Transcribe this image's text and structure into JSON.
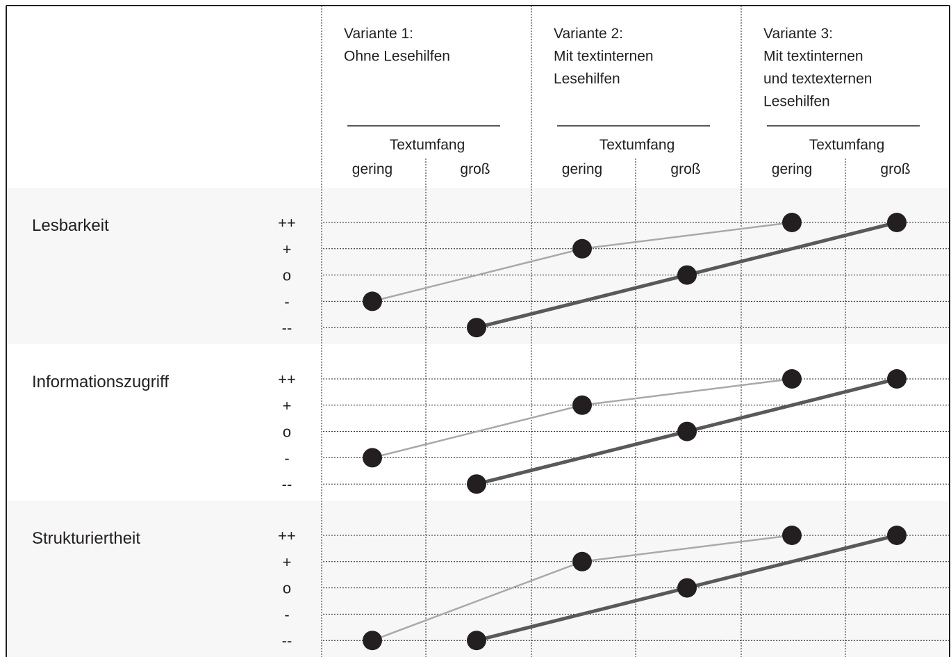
{
  "chart_data": {
    "type": "line",
    "variants": [
      {
        "title_lines": [
          "Variante 1:",
          "Ohne Lesehilfen"
        ],
        "subheader": "Textumfang",
        "categories": [
          "gering",
          "groß"
        ]
      },
      {
        "title_lines": [
          "Variante 2:",
          "Mit textinternen",
          "Lesehilfen"
        ],
        "subheader": "Textumfang",
        "categories": [
          "gering",
          "groß"
        ]
      },
      {
        "title_lines": [
          "Variante 3:",
          "Mit textinternen",
          "und textexternen",
          "Lesehilfen"
        ],
        "subheader": "Textumfang",
        "categories": [
          "gering",
          "groß"
        ]
      }
    ],
    "scale": [
      "++",
      "+",
      "o",
      "-",
      "--"
    ],
    "scale_values": [
      2,
      1,
      0,
      -1,
      -2
    ],
    "criteria": [
      {
        "name": "Lesbarkeit",
        "series": [
          {
            "style": "gering",
            "values": [
              -1,
              1,
              2
            ]
          },
          {
            "style": "groß",
            "values": [
              -2,
              0,
              2
            ]
          }
        ]
      },
      {
        "name": "Informationszugriff",
        "series": [
          {
            "style": "gering",
            "values": [
              -1,
              1,
              2
            ]
          },
          {
            "style": "groß",
            "values": [
              -2,
              0,
              2
            ]
          }
        ]
      },
      {
        "name": "Strukturiertheit",
        "series": [
          {
            "style": "gering",
            "values": [
              -2,
              1,
              2
            ]
          },
          {
            "style": "groß",
            "values": [
              -2,
              0,
              2
            ]
          }
        ]
      }
    ],
    "colors": {
      "light_line": "#a7a9ac",
      "dark_line": "#58595b",
      "point": "#231f20",
      "band": "#f7f7f7",
      "grid": "#231f20"
    }
  }
}
